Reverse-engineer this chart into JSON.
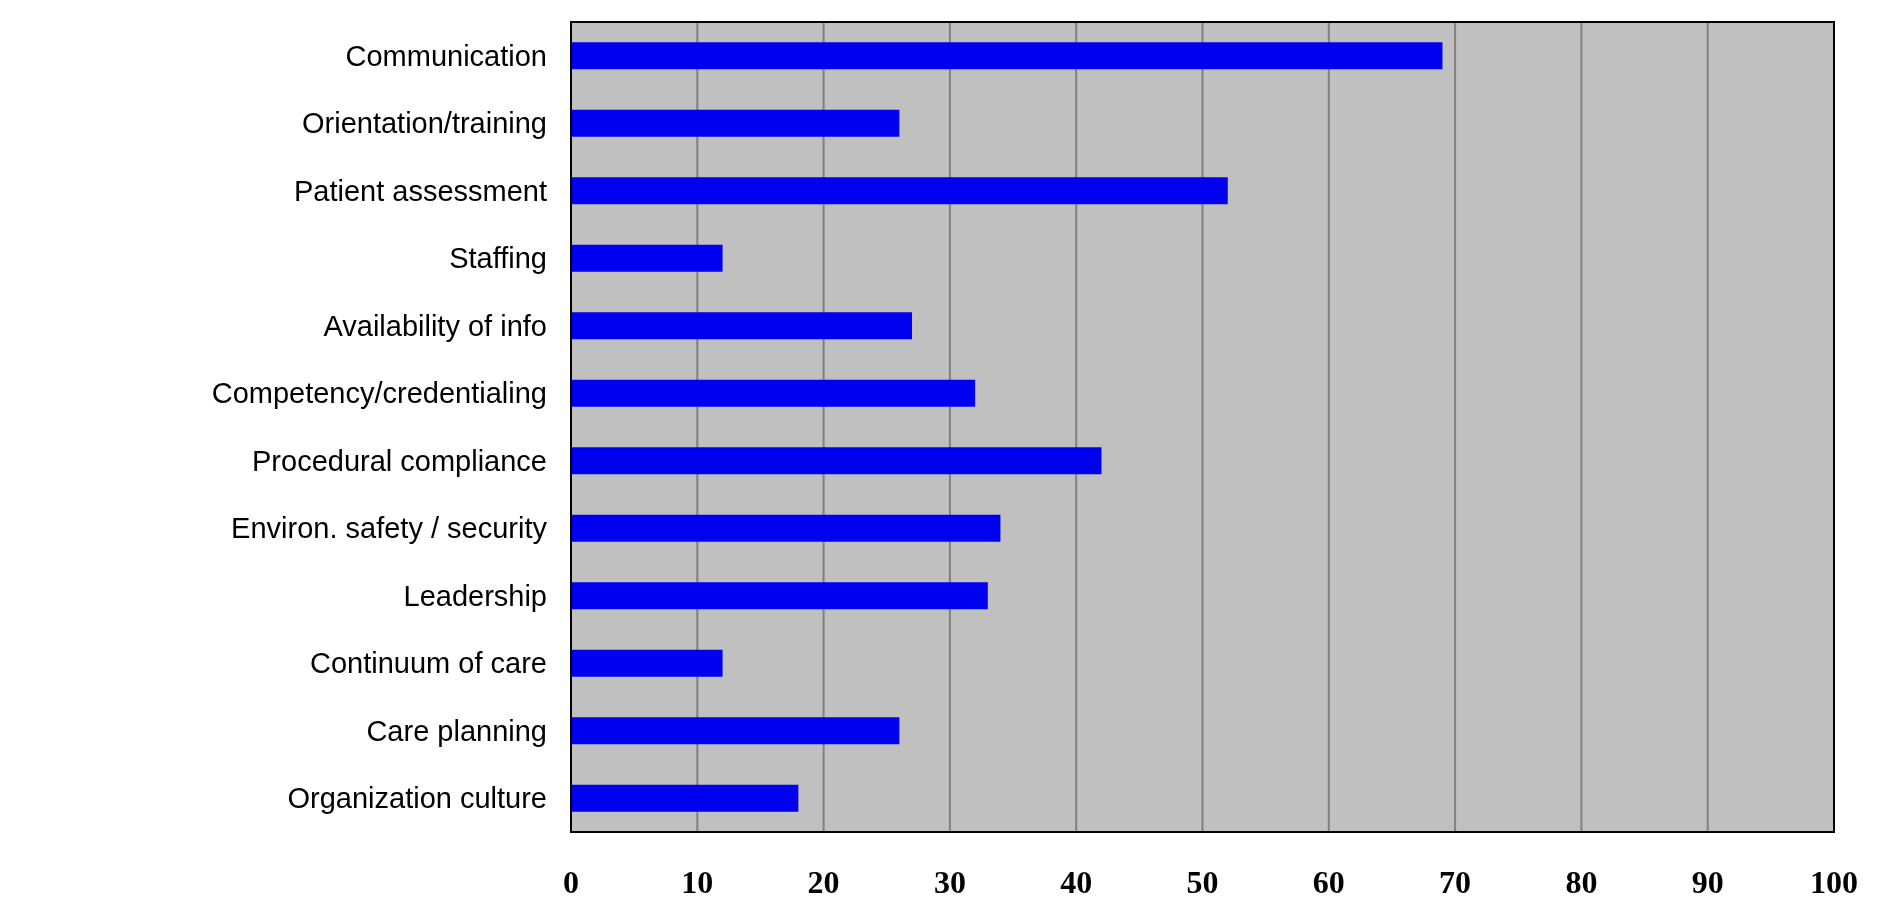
{
  "chart_data": {
    "type": "bar",
    "orientation": "horizontal",
    "categories": [
      "Communication",
      "Orientation/training",
      "Patient assessment",
      "Staffing",
      "Availability of info",
      "Competency/credentialing",
      "Procedural compliance",
      "Environ. safety / security",
      "Leadership",
      "Continuum of care",
      "Care planning",
      "Organization culture"
    ],
    "values": [
      69,
      26,
      52,
      12,
      27,
      32,
      42,
      34,
      33,
      12,
      26,
      18
    ],
    "color": "#0000f0",
    "xlim": [
      0,
      100
    ],
    "xticks": [
      0,
      10,
      20,
      30,
      40,
      50,
      60,
      70,
      80,
      90,
      100
    ],
    "grid": "x"
  }
}
